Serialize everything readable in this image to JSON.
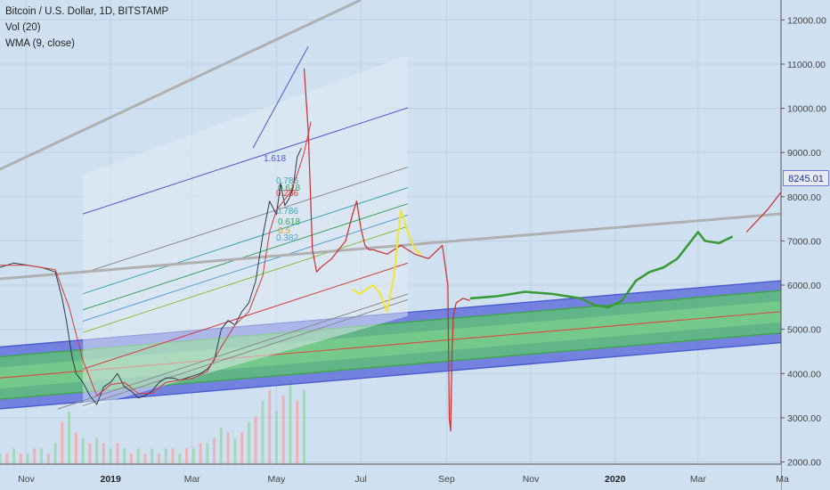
{
  "legend": {
    "symbol": "Bitcoin / U.S. Dollar, 1D, BITSTAMP",
    "volume": "Vol (20)",
    "wma": "WMA (9, close)"
  },
  "last_price": "8245.01",
  "colors": {
    "background": "#cfe1f1",
    "channel_outer": "#4a5bd0",
    "channel_mid": "#3da64a",
    "channel_center": "#d2564a",
    "fib_trend": "#7a7ab8",
    "projection_red": "#d02a2a",
    "projection_yellow": "#f2e635",
    "projection_green": "#3a9a36",
    "trendline_gray": "#b0b0b0"
  },
  "chart_data": {
    "type": "line",
    "title": "Bitcoin / U.S. Dollar, 1D, BITSTAMP",
    "y_axis": {
      "ticks": [
        2000,
        3000,
        4000,
        5000,
        6000,
        7000,
        8000,
        9000,
        10000,
        11000,
        12000
      ],
      "tick_labels": [
        "2000.00",
        "3000.00",
        "4000.00",
        "5000.00",
        "6000.00",
        "7000.00",
        "8000.00",
        "9000.00",
        "10000.00",
        "11000.00",
        "12000.00"
      ],
      "ylim": [
        1950,
        12450
      ]
    },
    "x_axis": {
      "tick_labels": [
        "Nov",
        "2019",
        "Mar",
        "May",
        "Jul",
        "Sep",
        "Nov",
        "2020",
        "Mar",
        "Ma"
      ],
      "tick_days": [
        -61,
        0,
        59,
        120,
        181,
        243,
        304,
        365,
        425,
        486
      ],
      "bold_labels": [
        "2019",
        "2020"
      ],
      "xlim": [
        -80,
        485
      ]
    },
    "fib_labels": [
      "1.618",
      "0.786",
      "0.618",
      "0.5",
      "0.382",
      "0.236"
    ],
    "series": [
      {
        "name": "Bitcoin / U.S. Dollar",
        "x": [
          -80,
          -70,
          -60,
          -50,
          -40,
          -35,
          -32,
          -28,
          -25,
          -20,
          -15,
          -10,
          -5,
          0,
          5,
          10,
          15,
          20,
          25,
          30,
          35,
          40,
          45,
          50,
          55,
          60,
          65,
          70,
          75,
          80,
          85,
          90,
          95,
          100,
          105,
          110,
          115,
          120,
          123,
          126,
          129,
          132,
          135,
          138
        ],
        "values": [
          6400,
          6500,
          6450,
          6400,
          6300,
          5700,
          5200,
          4400,
          4000,
          3800,
          3500,
          3300,
          3700,
          3800,
          4000,
          3700,
          3600,
          3450,
          3500,
          3600,
          3800,
          3900,
          3900,
          3850,
          3900,
          3950,
          4000,
          4100,
          4300,
          5000,
          5200,
          5100,
          5400,
          5600,
          6100,
          7100,
          7900,
          7600,
          8300,
          7800,
          7950,
          8200,
          8900,
          9100
        ]
      },
      {
        "name": "WMA (9, close)",
        "x": [
          -80,
          -60,
          -40,
          -30,
          -20,
          -10,
          0,
          10,
          20,
          30,
          40,
          50,
          60,
          70,
          80,
          90,
          100,
          110,
          115,
          120,
          125,
          130,
          135,
          140,
          145
        ],
        "values": [
          6450,
          6450,
          6350,
          5500,
          4300,
          3500,
          3750,
          3800,
          3550,
          3550,
          3800,
          3850,
          3900,
          4050,
          4600,
          5100,
          5400,
          6200,
          7200,
          7700,
          7900,
          8100,
          8500,
          9000,
          9700
        ]
      },
      {
        "name": "Projection",
        "x": [
          140,
          143,
          146,
          149,
          152,
          160,
          170,
          175,
          178,
          181,
          184,
          187,
          190,
          200,
          210,
          220,
          230,
          240,
          244,
          245,
          246,
          247,
          248,
          250,
          255,
          260
        ],
        "values": [
          10900,
          9500,
          6800,
          6300,
          6400,
          6600,
          7000,
          7600,
          7900,
          7300,
          6900,
          6800,
          6800,
          6700,
          6900,
          6700,
          6600,
          6900,
          6000,
          3000,
          2700,
          4500,
          5300,
          5600,
          5700,
          5650
        ]
      },
      {
        "name": "Projection",
        "x": [
          175,
          180,
          185,
          190,
          195,
          200,
          205,
          210,
          215,
          220,
          225
        ],
        "values": [
          5900,
          5800,
          5900,
          6000,
          5800,
          5400,
          6200,
          7700,
          7200,
          6800,
          6700
        ]
      },
      {
        "name": "Projection",
        "x": [
          260,
          280,
          300,
          320,
          340,
          350,
          360,
          370,
          380,
          390,
          400,
          410,
          420,
          425,
          430,
          440,
          450
        ],
        "values": [
          5700,
          5750,
          5850,
          5800,
          5700,
          5550,
          5500,
          5650,
          6100,
          6300,
          6400,
          6600,
          7000,
          7200,
          7000,
          6950,
          7100
        ]
      },
      {
        "name": "Projection",
        "x": [
          460,
          475,
          485
        ],
        "values": [
          7200,
          7700,
          8100
        ]
      }
    ],
    "volume": {
      "x": [
        -80,
        -75,
        -70,
        -65,
        -60,
        -55,
        -50,
        -45,
        -40,
        -35,
        -30,
        -25,
        -20,
        -15,
        -10,
        -5,
        0,
        5,
        10,
        15,
        20,
        25,
        30,
        35,
        40,
        45,
        50,
        55,
        60,
        65,
        70,
        75,
        80,
        85,
        90,
        95,
        100,
        105,
        110,
        115,
        120,
        125,
        130,
        135,
        140
      ],
      "values": [
        2,
        2,
        3,
        2,
        2,
        3,
        3,
        2,
        4,
        8,
        10,
        6,
        5,
        4,
        5,
        4,
        3,
        4,
        3,
        2,
        3,
        2,
        3,
        2,
        3,
        3,
        2,
        3,
        3,
        4,
        4,
        5,
        7,
        6,
        5,
        6,
        8,
        9,
        12,
        14,
        10,
        13,
        16,
        12,
        14
      ]
    },
    "grid": true,
    "legend_position": "top-left"
  }
}
